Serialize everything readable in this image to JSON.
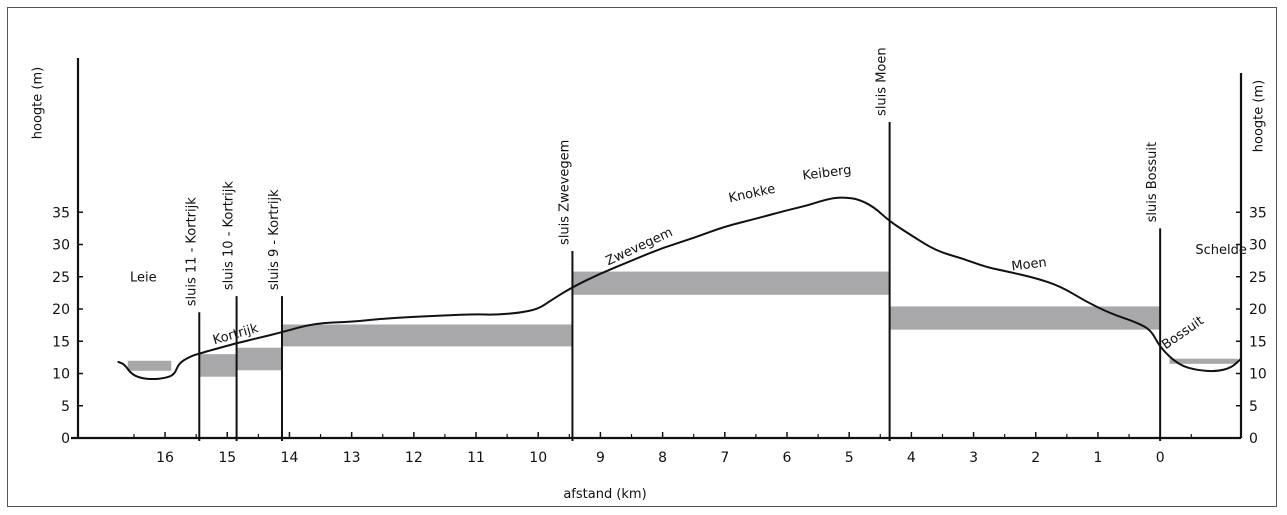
{
  "chart_data": {
    "type": "area",
    "xlabel": "afstand (km)",
    "ylabel_left": "hoogte (m)",
    "ylabel_right": "hoogte (m)",
    "xlim": [
      17.4,
      -1.3
    ],
    "ylim": [
      0,
      40
    ],
    "x_ticks": [
      16,
      15,
      14,
      13,
      12,
      11,
      10,
      9,
      8,
      7,
      6,
      5,
      4,
      3,
      2,
      1,
      0
    ],
    "y_ticks": [
      0,
      5,
      10,
      15,
      20,
      25,
      30,
      35
    ],
    "locks": [
      {
        "name": "sluis 11 - Kortrijk",
        "km": 15.45,
        "top": 19.5
      },
      {
        "name": "sluis 10 - Kortrijk",
        "km": 14.85,
        "top": 22.0
      },
      {
        "name": "sluis 9 - Kortrijk",
        "km": 14.12,
        "top": 22.0
      },
      {
        "name": "sluis Zwevegem",
        "km": 9.45,
        "top": 29.0
      },
      {
        "name": "sluis Moen",
        "km": 4.35,
        "top": 49.0
      },
      {
        "name": "sluis Bossuit",
        "km": 0.0,
        "top": 32.5
      }
    ],
    "water_levels": [
      {
        "from": 16.6,
        "to": 15.9,
        "bottom": 11.2,
        "top": 11.2
      },
      {
        "from": 15.45,
        "to": 14.85,
        "bottom": 9.5,
        "top": 13.0
      },
      {
        "from": 14.85,
        "to": 14.12,
        "bottom": 10.5,
        "top": 14.0
      },
      {
        "from": 14.12,
        "to": 9.45,
        "bottom": 14.2,
        "top": 17.6
      },
      {
        "from": 9.45,
        "to": 4.35,
        "bottom": 22.2,
        "top": 25.8
      },
      {
        "from": 4.35,
        "to": 0.0,
        "bottom": 16.8,
        "top": 20.4
      },
      {
        "from": -0.15,
        "to": -1.25,
        "bottom": 11.5,
        "top": 12.3
      }
    ],
    "terrain_profile": [
      [
        16.75,
        11.8
      ],
      [
        16.65,
        11.4
      ],
      [
        16.55,
        10.0
      ],
      [
        16.4,
        9.3
      ],
      [
        16.2,
        9.1
      ],
      [
        16.0,
        9.3
      ],
      [
        15.85,
        9.8
      ],
      [
        15.78,
        11.6
      ],
      [
        15.6,
        12.6
      ],
      [
        15.45,
        13.1
      ],
      [
        15.0,
        14.3
      ],
      [
        14.85,
        14.7
      ],
      [
        14.5,
        15.5
      ],
      [
        14.12,
        16.4
      ],
      [
        13.6,
        17.8
      ],
      [
        13.0,
        18.0
      ],
      [
        12.5,
        18.5
      ],
      [
        12.0,
        18.8
      ],
      [
        11.5,
        19.0
      ],
      [
        11.0,
        19.2
      ],
      [
        10.7,
        19.1
      ],
      [
        10.3,
        19.4
      ],
      [
        10.0,
        20.0
      ],
      [
        9.8,
        21.3
      ],
      [
        9.45,
        23.4
      ],
      [
        9.0,
        25.5
      ],
      [
        8.5,
        27.5
      ],
      [
        8.0,
        29.5
      ],
      [
        7.5,
        31.0
      ],
      [
        7.0,
        32.8
      ],
      [
        6.5,
        34.0
      ],
      [
        6.0,
        35.3
      ],
      [
        5.65,
        36.1
      ],
      [
        5.3,
        37.2
      ],
      [
        5.05,
        37.3
      ],
      [
        4.85,
        37.0
      ],
      [
        4.6,
        35.8
      ],
      [
        4.35,
        33.6
      ],
      [
        4.0,
        31.4
      ],
      [
        3.6,
        29.0
      ],
      [
        3.2,
        27.9
      ],
      [
        2.8,
        26.5
      ],
      [
        2.5,
        25.9
      ],
      [
        2.0,
        24.8
      ],
      [
        1.6,
        23.5
      ],
      [
        1.2,
        21.2
      ],
      [
        0.8,
        19.3
      ],
      [
        0.4,
        18.0
      ],
      [
        0.15,
        16.8
      ],
      [
        0.0,
        14.0
      ],
      [
        -0.3,
        11.3
      ],
      [
        -0.6,
        10.5
      ],
      [
        -0.9,
        10.3
      ],
      [
        -1.15,
        10.9
      ],
      [
        -1.3,
        12.3
      ]
    ],
    "annotations": [
      {
        "text": "Leie",
        "km": 16.35,
        "y": 24.3,
        "angle": 0
      },
      {
        "text": "Kortrijk",
        "km": 14.85,
        "y": 15.5,
        "angle": -16
      },
      {
        "text": "Zwevegem",
        "km": 8.35,
        "y": 29.1,
        "angle": -25
      },
      {
        "text": "Knokke",
        "km": 6.55,
        "y": 37.3,
        "angle": -12
      },
      {
        "text": "Keiberg",
        "km": 5.35,
        "y": 40.5,
        "angle": -7
      },
      {
        "text": "Moen",
        "km": 2.1,
        "y": 26.3,
        "angle": -7
      },
      {
        "text": "Schelde",
        "km": -0.98,
        "y": 28.5,
        "angle": 0
      },
      {
        "text": "Bossuit",
        "km": -0.4,
        "y": 15.8,
        "angle": -35
      }
    ]
  }
}
